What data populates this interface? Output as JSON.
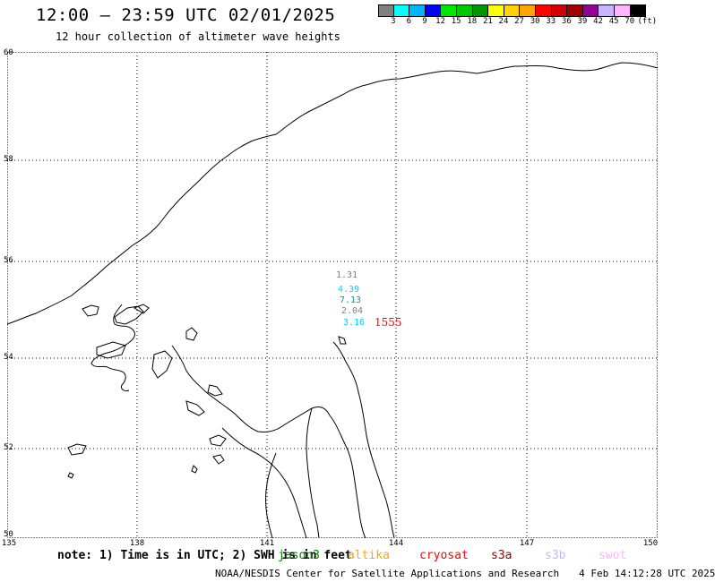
{
  "header": {
    "title": "12:00 – 23:59 UTC 02/01/2025",
    "subtitle": "12 hour collection of altimeter wave heights"
  },
  "legend": {
    "colors": [
      "#808080",
      "#00ffff",
      "#00b4ff",
      "#0000ff",
      "#00e600",
      "#00c800",
      "#009600",
      "#ffff00",
      "#ffd200",
      "#ffa500",
      "#ff0000",
      "#d20000",
      "#a00000",
      "#960096",
      "#c8b4ff",
      "#ffb4ff",
      "#000000"
    ],
    "labels": [
      "3",
      "6",
      "9",
      "12",
      "15",
      "18",
      "21",
      "24",
      "27",
      "30",
      "33",
      "36",
      "39",
      "42",
      "45",
      "70",
      "(ft)"
    ]
  },
  "map": {
    "lat_labels": [
      "60",
      "58",
      "56",
      "54",
      "52",
      "50"
    ],
    "lon_labels": [
      "135",
      "138",
      "141",
      "144",
      "147",
      "150"
    ],
    "observations": [
      {
        "value": "1.31",
        "color": "#808080"
      },
      {
        "value": "4.39",
        "color": "#00d2ff"
      },
      {
        "value": "7.13",
        "color": "#0096c8"
      },
      {
        "value": "2.04",
        "color": "#808080"
      },
      {
        "value": "3.16",
        "color": "#00d2ff"
      }
    ],
    "time_label": {
      "value": "1555",
      "color": "#ff0000"
    }
  },
  "note": "note: 1) Time is in UTC; 2) SWH is in feet",
  "satellites": [
    {
      "name": "jason3",
      "color": "#008000"
    },
    {
      "name": "altika",
      "color": "#ffa500"
    },
    {
      "name": "cryosat",
      "color": "#ff0000"
    },
    {
      "name": "s3a",
      "color": "#a00000"
    },
    {
      "name": "s3b",
      "color": "#c8b4ff"
    },
    {
      "name": "swot",
      "color": "#ffb4ff"
    }
  ],
  "footer": {
    "agency": "NOAA/NESDIS Center for Satellite Applications and Research",
    "timestamp": "4 Feb 14:12:28 UTC 2025"
  }
}
